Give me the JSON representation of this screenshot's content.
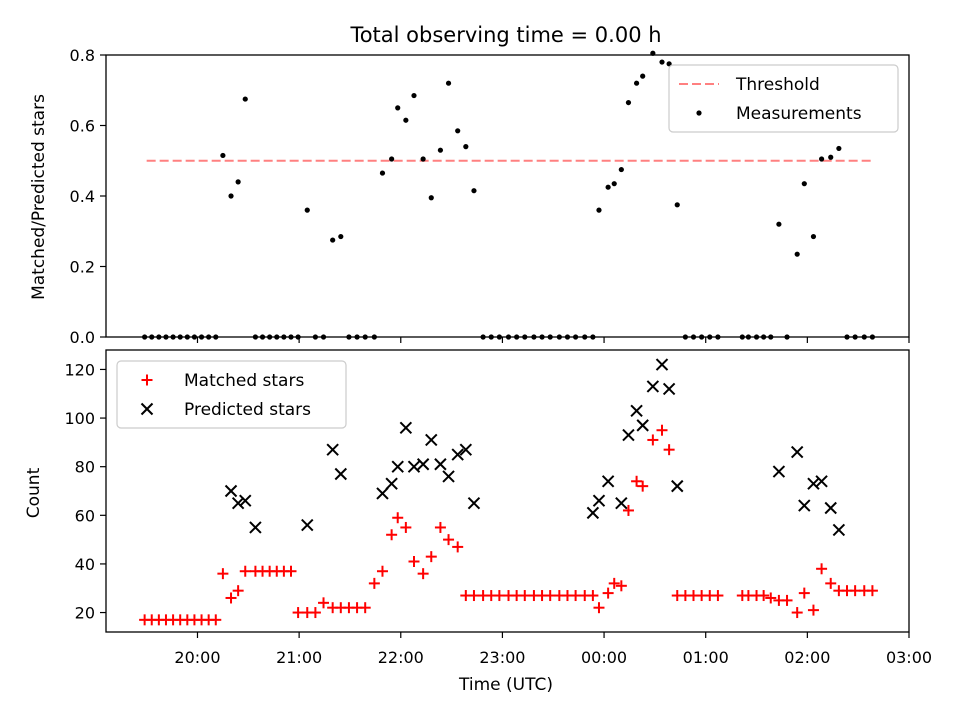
{
  "figure": {
    "title": "Total observing time = 0.00 h"
  },
  "chart_data": [
    {
      "type": "scatter",
      "title": "Total observing time = 0.00 h",
      "ylabel": "Matched/Predicted stars",
      "xlabel": "",
      "x_unit": "hours (UTC, 24 = 00:00 next day)",
      "xlim": [
        19.1,
        27.0
      ],
      "ylim": [
        0.0,
        0.8
      ],
      "yticks": [
        "0.0",
        "0.2",
        "0.4",
        "0.6",
        "0.8"
      ],
      "grid": false,
      "legend": {
        "position": "top-right",
        "entries": [
          "Threshold",
          "Measurements"
        ]
      },
      "threshold": {
        "name": "Threshold",
        "value": 0.5,
        "x_range": [
          19.5,
          26.65
        ],
        "color": "#ff8080"
      },
      "series": [
        {
          "name": "Measurements",
          "marker": "dot",
          "color": "#000000",
          "x": [
            19.48,
            19.55,
            19.62,
            19.69,
            19.76,
            19.83,
            19.9,
            19.97,
            20.04,
            20.11,
            20.18,
            20.25,
            20.33,
            20.4,
            20.47,
            20.57,
            20.64,
            20.71,
            20.78,
            20.85,
            20.92,
            20.99,
            21.08,
            21.16,
            21.24,
            21.33,
            21.41,
            21.49,
            21.57,
            21.65,
            21.74,
            21.82,
            21.91,
            21.97,
            22.05,
            22.13,
            22.22,
            22.3,
            22.39,
            22.47,
            22.56,
            22.64,
            22.72,
            22.81,
            22.89,
            22.97,
            23.06,
            23.14,
            23.22,
            23.31,
            23.39,
            23.47,
            23.56,
            23.64,
            23.72,
            23.81,
            23.89,
            23.95,
            24.04,
            24.1,
            24.17,
            24.24,
            24.32,
            24.38,
            24.48,
            24.57,
            24.64,
            24.72,
            24.8,
            24.88,
            24.96,
            25.04,
            25.12,
            25.36,
            25.42,
            25.5,
            25.57,
            25.64,
            25.72,
            25.8,
            25.9,
            25.97,
            26.06,
            26.14,
            26.23,
            26.31,
            26.39,
            26.47,
            26.56,
            26.64
          ],
          "y": [
            0.0,
            0.0,
            0.0,
            0.0,
            0.0,
            0.0,
            0.0,
            0.0,
            0.0,
            0.0,
            0.0,
            0.515,
            0.4,
            0.44,
            0.675,
            0.0,
            0.0,
            0.0,
            0.0,
            0.0,
            0.0,
            0.0,
            0.36,
            0.0,
            0.0,
            0.275,
            0.285,
            0.0,
            0.0,
            0.0,
            0.0,
            0.465,
            0.505,
            0.65,
            0.615,
            0.685,
            0.505,
            0.395,
            0.53,
            0.72,
            0.585,
            0.54,
            0.415,
            0.0,
            0.0,
            0.0,
            0.0,
            0.0,
            0.0,
            0.0,
            0.0,
            0.0,
            0.0,
            0.0,
            0.0,
            0.0,
            0.0,
            0.36,
            0.425,
            0.435,
            0.475,
            0.665,
            0.72,
            0.74,
            0.805,
            0.78,
            0.775,
            0.375,
            0.0,
            0.0,
            0.0,
            0.0,
            0.0,
            0.0,
            0.0,
            0.0,
            0.0,
            0.0,
            0.32,
            0.0,
            0.235,
            0.435,
            0.285,
            0.505,
            0.51,
            0.535,
            0.0,
            0.0,
            0.0,
            0.0
          ]
        }
      ]
    },
    {
      "type": "scatter",
      "title": "",
      "ylabel": "Count",
      "xlabel": "Time (UTC)",
      "x_unit": "hours (UTC, 24 = 00:00 next day)",
      "xlim": [
        19.1,
        27.0
      ],
      "ylim": [
        12,
        128
      ],
      "yticks": [
        "20",
        "40",
        "60",
        "80",
        "100",
        "120"
      ],
      "xticks": [
        "20:00",
        "21:00",
        "22:00",
        "23:00",
        "00:00",
        "01:00",
        "02:00",
        "03:00"
      ],
      "grid": false,
      "legend": {
        "position": "top-left",
        "entries": [
          "Matched stars",
          "Predicted stars"
        ]
      },
      "series": [
        {
          "name": "Matched stars",
          "marker": "plus",
          "color": "#ff0000",
          "x": [
            19.48,
            19.55,
            19.62,
            19.69,
            19.76,
            19.83,
            19.9,
            19.97,
            20.04,
            20.11,
            20.18,
            20.25,
            20.33,
            20.4,
            20.47,
            20.57,
            20.64,
            20.71,
            20.78,
            20.85,
            20.92,
            20.99,
            21.08,
            21.16,
            21.24,
            21.33,
            21.41,
            21.49,
            21.57,
            21.65,
            21.74,
            21.82,
            21.91,
            21.97,
            22.05,
            22.13,
            22.22,
            22.3,
            22.39,
            22.47,
            22.56,
            22.64,
            22.72,
            22.81,
            22.89,
            22.97,
            23.06,
            23.14,
            23.22,
            23.31,
            23.39,
            23.47,
            23.56,
            23.64,
            23.72,
            23.81,
            23.89,
            23.95,
            24.04,
            24.1,
            24.17,
            24.24,
            24.32,
            24.38,
            24.48,
            24.57,
            24.64,
            24.72,
            24.8,
            24.88,
            24.96,
            25.04,
            25.12,
            25.36,
            25.42,
            25.5,
            25.57,
            25.64,
            25.72,
            25.8,
            25.9,
            25.97,
            26.06,
            26.14,
            26.23,
            26.31,
            26.39,
            26.47,
            26.56,
            26.64
          ],
          "y": [
            17,
            17,
            17,
            17,
            17,
            17,
            17,
            17,
            17,
            17,
            17,
            36,
            26,
            29,
            37,
            37,
            37,
            37,
            37,
            37,
            37,
            20,
            20,
            20,
            24,
            22,
            22,
            22,
            22,
            22,
            32,
            37,
            52,
            59,
            55,
            41,
            36,
            43,
            55,
            50,
            47,
            27,
            27,
            27,
            27,
            27,
            27,
            27,
            27,
            27,
            27,
            27,
            27,
            27,
            27,
            27,
            27,
            22,
            28,
            32,
            31,
            62,
            74,
            72,
            91,
            95,
            87,
            27,
            27,
            27,
            27,
            27,
            27,
            27,
            27,
            27,
            27,
            26,
            25,
            25,
            20,
            28,
            21,
            38,
            32,
            29,
            29,
            29,
            29,
            29
          ]
        },
        {
          "name": "Predicted stars",
          "marker": "x",
          "color": "#000000",
          "x": [
            20.33,
            20.4,
            20.47,
            20.57,
            21.08,
            21.33,
            21.41,
            21.82,
            21.91,
            21.97,
            22.05,
            22.13,
            22.22,
            22.3,
            22.39,
            22.47,
            22.56,
            22.64,
            22.72,
            23.89,
            23.95,
            24.04,
            24.17,
            24.24,
            24.32,
            24.38,
            24.48,
            24.57,
            24.64,
            24.72,
            25.72,
            25.9,
            25.97,
            26.06,
            26.14,
            26.23,
            26.31
          ],
          "y": [
            70,
            65,
            66,
            55,
            56,
            87,
            77,
            69,
            73,
            80,
            96,
            80,
            81,
            91,
            81,
            76,
            85,
            87,
            65,
            61,
            66,
            74,
            65,
            93,
            103,
            97,
            113,
            122,
            112,
            72,
            78,
            86,
            64,
            73,
            74,
            63,
            54
          ]
        }
      ]
    }
  ]
}
